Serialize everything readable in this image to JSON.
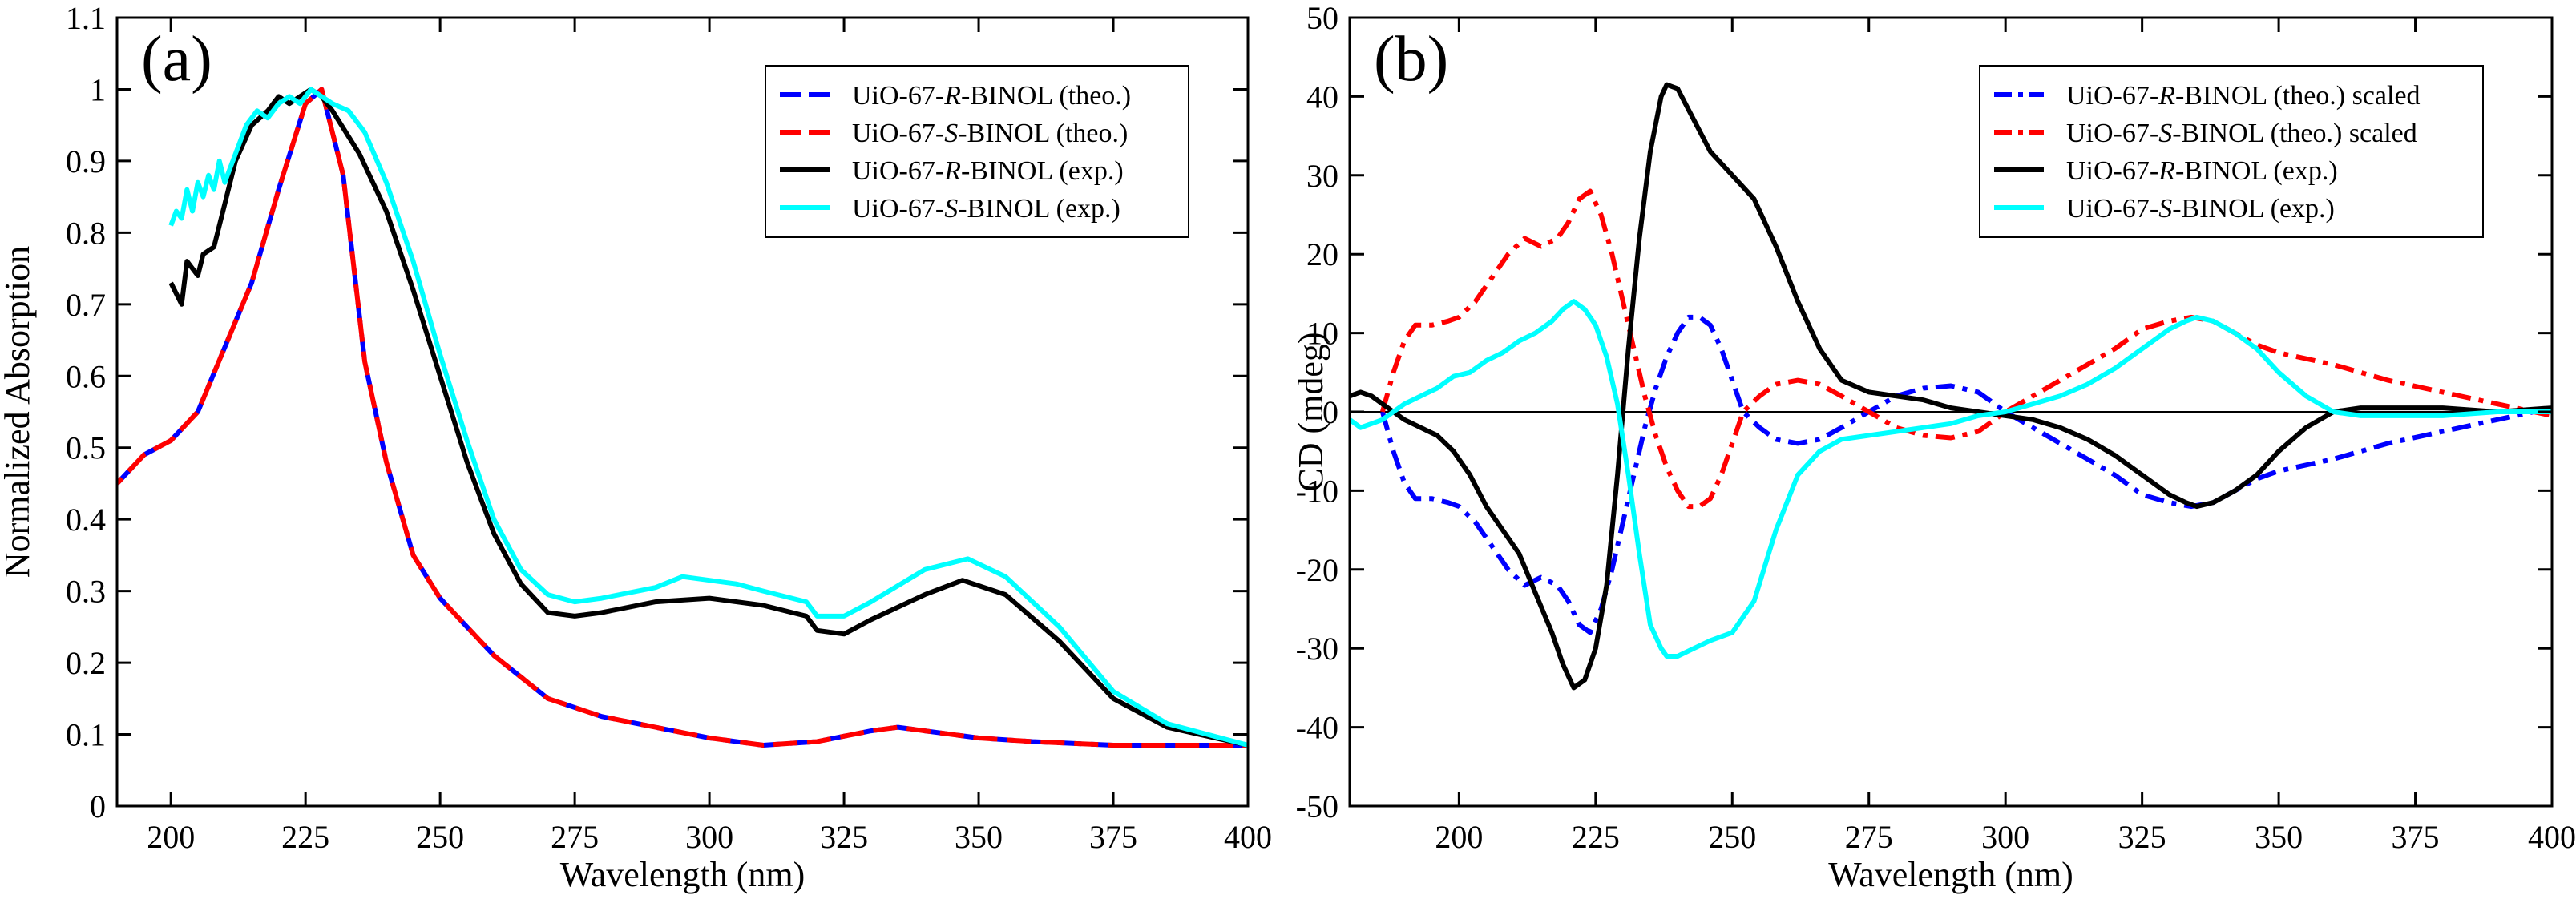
{
  "chart_data": [
    {
      "type": "line",
      "panel_label": "(a)",
      "xlabel": "Wavelength (nm)",
      "ylabel": "Normalized Absorption",
      "xlim": [
        190,
        400
      ],
      "ylim": [
        0,
        1.1
      ],
      "xticks": [
        200,
        225,
        250,
        275,
        300,
        325,
        350,
        375,
        400
      ],
      "yticks": [
        0,
        0.1,
        0.2,
        0.3,
        0.4,
        0.5,
        0.6,
        0.7,
        0.8,
        0.9,
        1,
        1.1
      ],
      "legend_position": "top-right",
      "series": [
        {
          "name_prefix": "UiO-67-",
          "name_italic": "R",
          "name_suffix": "-BINOL (theo.)",
          "color": "#0000ff",
          "dash": "long-dash",
          "x": [
            190,
            195,
            200,
            205,
            210,
            215,
            220,
            225,
            228,
            232,
            236,
            240,
            245,
            250,
            255,
            260,
            270,
            280,
            290,
            300,
            310,
            320,
            330,
            335,
            340,
            350,
            360,
            375,
            400
          ],
          "y": [
            0.45,
            0.49,
            0.51,
            0.55,
            0.64,
            0.73,
            0.86,
            0.98,
            1.0,
            0.88,
            0.62,
            0.48,
            0.35,
            0.29,
            0.25,
            0.21,
            0.15,
            0.125,
            0.11,
            0.095,
            0.085,
            0.09,
            0.105,
            0.11,
            0.105,
            0.095,
            0.09,
            0.085,
            0.085
          ]
        },
        {
          "name_prefix": "UiO-67-",
          "name_italic": "S",
          "name_suffix": "-BINOL (theo.)",
          "color": "#ff0000",
          "dash": "long-dash-offset",
          "x": [
            190,
            195,
            200,
            205,
            210,
            215,
            220,
            225,
            228,
            232,
            236,
            240,
            245,
            250,
            255,
            260,
            270,
            280,
            290,
            300,
            310,
            320,
            330,
            335,
            340,
            350,
            360,
            375,
            400
          ],
          "y": [
            0.45,
            0.49,
            0.51,
            0.55,
            0.64,
            0.73,
            0.86,
            0.98,
            1.0,
            0.88,
            0.62,
            0.48,
            0.35,
            0.29,
            0.25,
            0.21,
            0.15,
            0.125,
            0.11,
            0.095,
            0.085,
            0.09,
            0.105,
            0.11,
            0.105,
            0.095,
            0.09,
            0.085,
            0.085
          ]
        },
        {
          "name_prefix": "UiO-67-",
          "name_italic": "R",
          "name_suffix": "-BINOL (exp.)",
          "color": "#000000",
          "dash": "solid",
          "x": [
            200,
            202,
            203,
            205,
            206,
            208,
            210,
            212,
            215,
            218,
            220,
            222,
            224,
            226,
            228,
            230,
            235,
            240,
            245,
            250,
            255,
            260,
            265,
            270,
            275,
            280,
            290,
            300,
            310,
            318,
            320,
            325,
            330,
            340,
            347,
            355,
            365,
            375,
            385,
            400
          ],
          "y": [
            0.73,
            0.7,
            0.76,
            0.74,
            0.77,
            0.78,
            0.84,
            0.9,
            0.95,
            0.97,
            0.99,
            0.98,
            0.99,
            1.0,
            0.99,
            0.97,
            0.91,
            0.83,
            0.72,
            0.6,
            0.48,
            0.38,
            0.31,
            0.27,
            0.265,
            0.27,
            0.285,
            0.29,
            0.28,
            0.265,
            0.245,
            0.24,
            0.26,
            0.295,
            0.315,
            0.295,
            0.23,
            0.15,
            0.11,
            0.085
          ]
        },
        {
          "name_prefix": "UiO-67-",
          "name_italic": "S",
          "name_suffix": "-BINOL (exp.)",
          "color": "#00ffff",
          "dash": "solid",
          "x": [
            200,
            201,
            202,
            203,
            204,
            205,
            206,
            207,
            208,
            209,
            210,
            212,
            214,
            216,
            218,
            220,
            222,
            224,
            226,
            228,
            230,
            233,
            236,
            240,
            245,
            250,
            255,
            260,
            265,
            270,
            275,
            280,
            290,
            295,
            300,
            305,
            310,
            318,
            320,
            325,
            330,
            340,
            348,
            355,
            365,
            375,
            385,
            400
          ],
          "y": [
            0.81,
            0.83,
            0.82,
            0.86,
            0.83,
            0.87,
            0.85,
            0.88,
            0.86,
            0.9,
            0.87,
            0.91,
            0.95,
            0.97,
            0.96,
            0.98,
            0.99,
            0.98,
            1.0,
            0.99,
            0.98,
            0.97,
            0.94,
            0.87,
            0.76,
            0.63,
            0.51,
            0.4,
            0.33,
            0.295,
            0.285,
            0.29,
            0.305,
            0.32,
            0.315,
            0.31,
            0.3,
            0.285,
            0.265,
            0.265,
            0.285,
            0.33,
            0.345,
            0.32,
            0.25,
            0.16,
            0.115,
            0.085
          ]
        }
      ]
    },
    {
      "type": "line",
      "panel_label": "(b)",
      "xlabel": "Wavelength (nm)",
      "ylabel": "CD (mdeg)",
      "xlim": [
        180,
        400
      ],
      "ylim": [
        -50,
        50
      ],
      "xticks": [
        200,
        225,
        250,
        275,
        300,
        325,
        350,
        375,
        400
      ],
      "yticks": [
        -50,
        -40,
        -30,
        -20,
        -10,
        0,
        10,
        20,
        30,
        40,
        50
      ],
      "zero_line": true,
      "legend_position": "top-right",
      "series": [
        {
          "name_prefix": "UiO-67-",
          "name_italic": "R",
          "name_suffix": "-BINOL (theo.) scaled",
          "color": "#0000ff",
          "dash": "dash-dot",
          "x": [
            186,
            188,
            190,
            192,
            195,
            198,
            200,
            203,
            206,
            209,
            212,
            215,
            218,
            220,
            222,
            224,
            226,
            228,
            230,
            232,
            234,
            236,
            238,
            240,
            242,
            244,
            246,
            248,
            250,
            252,
            255,
            258,
            262,
            266,
            270,
            275,
            280,
            285,
            290,
            295,
            300,
            305,
            310,
            315,
            320,
            325,
            330,
            334,
            338,
            342,
            346,
            350,
            360,
            370,
            380,
            390,
            400
          ],
          "y": [
            0,
            -5,
            -9,
            -11,
            -11,
            -11.5,
            -12,
            -14,
            -17,
            -20,
            -22,
            -21,
            -22,
            -24,
            -27,
            -28,
            -25,
            -20,
            -14,
            -8,
            -2,
            3,
            7,
            10,
            12,
            12,
            11,
            8,
            4,
            0,
            -2,
            -3.5,
            -4,
            -3.5,
            -2,
            0,
            2,
            3,
            3.3,
            2.5,
            0,
            -2,
            -4,
            -6,
            -8,
            -10.5,
            -11.5,
            -12,
            -11.5,
            -10,
            -8.5,
            -7.5,
            -6,
            -4,
            -2.5,
            -1,
            0.5
          ]
        },
        {
          "name_prefix": "UiO-67-",
          "name_italic": "S",
          "name_suffix": "-BINOL (theo.) scaled",
          "color": "#ff0000",
          "dash": "dash-dot",
          "x": [
            186,
            188,
            190,
            192,
            195,
            198,
            200,
            203,
            206,
            209,
            212,
            215,
            218,
            220,
            222,
            224,
            226,
            228,
            230,
            232,
            234,
            236,
            238,
            240,
            242,
            244,
            246,
            248,
            250,
            252,
            255,
            258,
            262,
            266,
            270,
            275,
            280,
            285,
            290,
            295,
            300,
            305,
            310,
            315,
            320,
            325,
            330,
            334,
            338,
            342,
            346,
            350,
            360,
            370,
            380,
            390,
            400
          ],
          "y": [
            0,
            5,
            9,
            11,
            11,
            11.5,
            12,
            14,
            17,
            20,
            22,
            21,
            22,
            24,
            27,
            28,
            25,
            20,
            14,
            8,
            2,
            -3,
            -7,
            -10,
            -12,
            -12,
            -11,
            -8,
            -4,
            0,
            2,
            3.5,
            4,
            3.5,
            2,
            0,
            -2,
            -3,
            -3.3,
            -2.5,
            0,
            2,
            4,
            6,
            8,
            10.5,
            11.5,
            12,
            11.5,
            10,
            8.5,
            7.5,
            6,
            4,
            2.5,
            1,
            -0.5
          ]
        },
        {
          "name_prefix": "UiO-67-",
          "name_italic": "R",
          "name_suffix": "-BINOL (exp.)",
          "color": "#000000",
          "dash": "solid",
          "x": [
            180,
            182,
            184,
            186,
            188,
            190,
            193,
            196,
            199,
            202,
            205,
            208,
            211,
            214,
            217,
            219,
            221,
            223,
            225,
            227,
            229,
            231,
            233,
            235,
            237,
            238,
            240,
            243,
            246,
            250,
            254,
            258,
            262,
            266,
            270,
            275,
            280,
            285,
            290,
            295,
            300,
            305,
            310,
            315,
            320,
            325,
            330,
            333,
            335,
            338,
            342,
            346,
            350,
            355,
            360,
            365,
            370,
            380,
            390,
            400
          ],
          "y": [
            2,
            2.5,
            2,
            1,
            0,
            -1,
            -2,
            -3,
            -5,
            -8,
            -12,
            -15,
            -18,
            -23,
            -28,
            -32,
            -35,
            -34,
            -30,
            -22,
            -8,
            8,
            22,
            33,
            40,
            41.5,
            41,
            37,
            33,
            30,
            27,
            21,
            14,
            8,
            4,
            2.5,
            2,
            1.5,
            0.5,
            0,
            -0.5,
            -1,
            -2,
            -3.5,
            -5.5,
            -8,
            -10.5,
            -11.5,
            -12,
            -11.5,
            -10,
            -8,
            -5,
            -2,
            0,
            0.5,
            0.5,
            0.5,
            0,
            0.5
          ]
        },
        {
          "name_prefix": "UiO-67-",
          "name_italic": "S",
          "name_suffix": "-BINOL (exp.)",
          "color": "#00ffff",
          "dash": "solid",
          "x": [
            180,
            182,
            184,
            186,
            188,
            190,
            193,
            196,
            199,
            202,
            205,
            208,
            211,
            214,
            217,
            219,
            221,
            223,
            225,
            227,
            229,
            231,
            233,
            235,
            237,
            238,
            240,
            243,
            246,
            250,
            254,
            258,
            262,
            266,
            270,
            275,
            280,
            285,
            290,
            295,
            300,
            305,
            310,
            315,
            320,
            325,
            330,
            333,
            335,
            338,
            342,
            346,
            350,
            355,
            360,
            365,
            370,
            380,
            390,
            400
          ],
          "y": [
            -1,
            -2,
            -1.5,
            -1,
            0,
            1,
            2,
            3,
            4.5,
            5,
            6.5,
            7.5,
            9,
            10,
            11.5,
            13,
            14,
            13,
            11,
            7,
            1,
            -8,
            -18,
            -27,
            -30,
            -31,
            -31,
            -30,
            -29,
            -28,
            -24,
            -15,
            -8,
            -5,
            -3.5,
            -3,
            -2.5,
            -2,
            -1.5,
            -0.5,
            0,
            1,
            2,
            3.5,
            5.5,
            8,
            10.5,
            11.5,
            12,
            11.5,
            10,
            8,
            5,
            2,
            0,
            -0.5,
            -0.5,
            -0.5,
            0,
            0
          ]
        }
      ]
    }
  ]
}
